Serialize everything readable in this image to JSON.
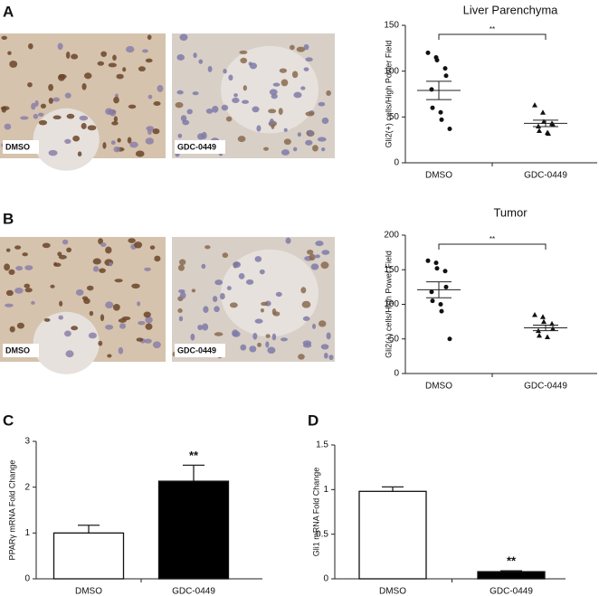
{
  "chart_data": [
    {
      "type": "scatter",
      "panel": "A",
      "title": "Liver Parenchyma",
      "ylabel": "Gli2(+) cells/High Power Field",
      "image_labels": [
        "DMSO",
        "GDC-0449"
      ],
      "categories": [
        "DMSO",
        "GDC-0449"
      ],
      "markers": [
        "circle",
        "triangle"
      ],
      "color": "#111111",
      "points": [
        [
          120,
          115,
          112,
          103,
          95,
          80,
          60,
          55,
          47,
          37
        ],
        [
          63,
          55,
          45,
          43,
          42,
          40,
          35,
          33,
          32
        ]
      ],
      "means": [
        79,
        43
      ],
      "errors": [
        10,
        3.5
      ],
      "ylim": [
        0,
        150
      ],
      "yticks": [
        0,
        50,
        100,
        150
      ],
      "annotation": "**"
    },
    {
      "type": "scatter",
      "panel": "B",
      "title": "Tumor",
      "ylabel": "Gli2(+) cells/High Power Field",
      "image_labels": [
        "DMSO",
        "GDC-0449"
      ],
      "categories": [
        "DMSO",
        "GDC-0449"
      ],
      "markers": [
        "circle",
        "triangle"
      ],
      "color": "#111111",
      "points": [
        [
          163,
          160,
          152,
          148,
          125,
          118,
          105,
          100,
          90,
          50
        ],
        [
          85,
          82,
          75,
          72,
          65,
          62,
          55,
          53
        ]
      ],
      "means": [
        121,
        66
      ],
      "errors": [
        11.5,
        4
      ],
      "ylim": [
        0,
        200
      ],
      "yticks": [
        0,
        50,
        100,
        150,
        200
      ],
      "annotation": "**"
    },
    {
      "type": "bar",
      "panel": "C",
      "ylabel": "PPARγ mRNA Fold Change",
      "categories": [
        "DMSO",
        "GDC-0449"
      ],
      "values": [
        1.0,
        2.13
      ],
      "errors": [
        0.17,
        0.35
      ],
      "colors": [
        "#ffffff",
        "#000000"
      ],
      "ylim": [
        0,
        3
      ],
      "yticks": [
        0,
        1,
        2,
        3
      ],
      "annotation": "**"
    },
    {
      "type": "bar",
      "panel": "D",
      "ylabel": "Gli1 mRNA Fold Change",
      "categories": [
        "DMSO",
        "GDC-0449"
      ],
      "values": [
        0.98,
        0.08
      ],
      "errors": [
        0.05,
        0.01
      ],
      "colors": [
        "#ffffff",
        "#000000"
      ],
      "ylim": [
        0,
        1.5
      ],
      "yticks": [
        0,
        0.5,
        1,
        1.5
      ],
      "annotation": "**"
    }
  ]
}
